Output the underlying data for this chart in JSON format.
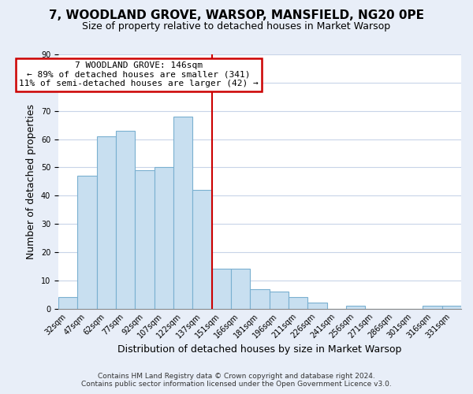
{
  "title": "7, WOODLAND GROVE, WARSOP, MANSFIELD, NG20 0PE",
  "subtitle": "Size of property relative to detached houses in Market Warsop",
  "xlabel": "Distribution of detached houses by size in Market Warsop",
  "ylabel": "Number of detached properties",
  "footer_line1": "Contains HM Land Registry data © Crown copyright and database right 2024.",
  "footer_line2": "Contains public sector information licensed under the Open Government Licence v3.0.",
  "bin_labels": [
    "32sqm",
    "47sqm",
    "62sqm",
    "77sqm",
    "92sqm",
    "107sqm",
    "122sqm",
    "137sqm",
    "151sqm",
    "166sqm",
    "181sqm",
    "196sqm",
    "211sqm",
    "226sqm",
    "241sqm",
    "256sqm",
    "271sqm",
    "286sqm",
    "301sqm",
    "316sqm",
    "331sqm"
  ],
  "bar_heights": [
    4,
    47,
    61,
    63,
    49,
    50,
    68,
    42,
    14,
    14,
    7,
    6,
    4,
    2,
    0,
    1,
    0,
    0,
    0,
    1,
    1
  ],
  "bar_color": "#c8dff0",
  "bar_edge_color": "#7ab0d0",
  "marker_label": "7 WOODLAND GROVE: 146sqm",
  "annotation_line1": "← 89% of detached houses are smaller (341)",
  "annotation_line2": "11% of semi-detached houses are larger (42) →",
  "marker_line_color": "#cc0000",
  "annotation_box_edge_color": "#cc0000",
  "ylim": [
    0,
    90
  ],
  "yticks": [
    0,
    10,
    20,
    30,
    40,
    50,
    60,
    70,
    80,
    90
  ],
  "background_color": "#e8eef8",
  "plot_background_color": "#ffffff",
  "grid_color": "#c8d4e8",
  "title_fontsize": 11,
  "subtitle_fontsize": 9,
  "axis_label_fontsize": 9,
  "tick_fontsize": 7,
  "annotation_fontsize": 8,
  "footer_fontsize": 6.5
}
